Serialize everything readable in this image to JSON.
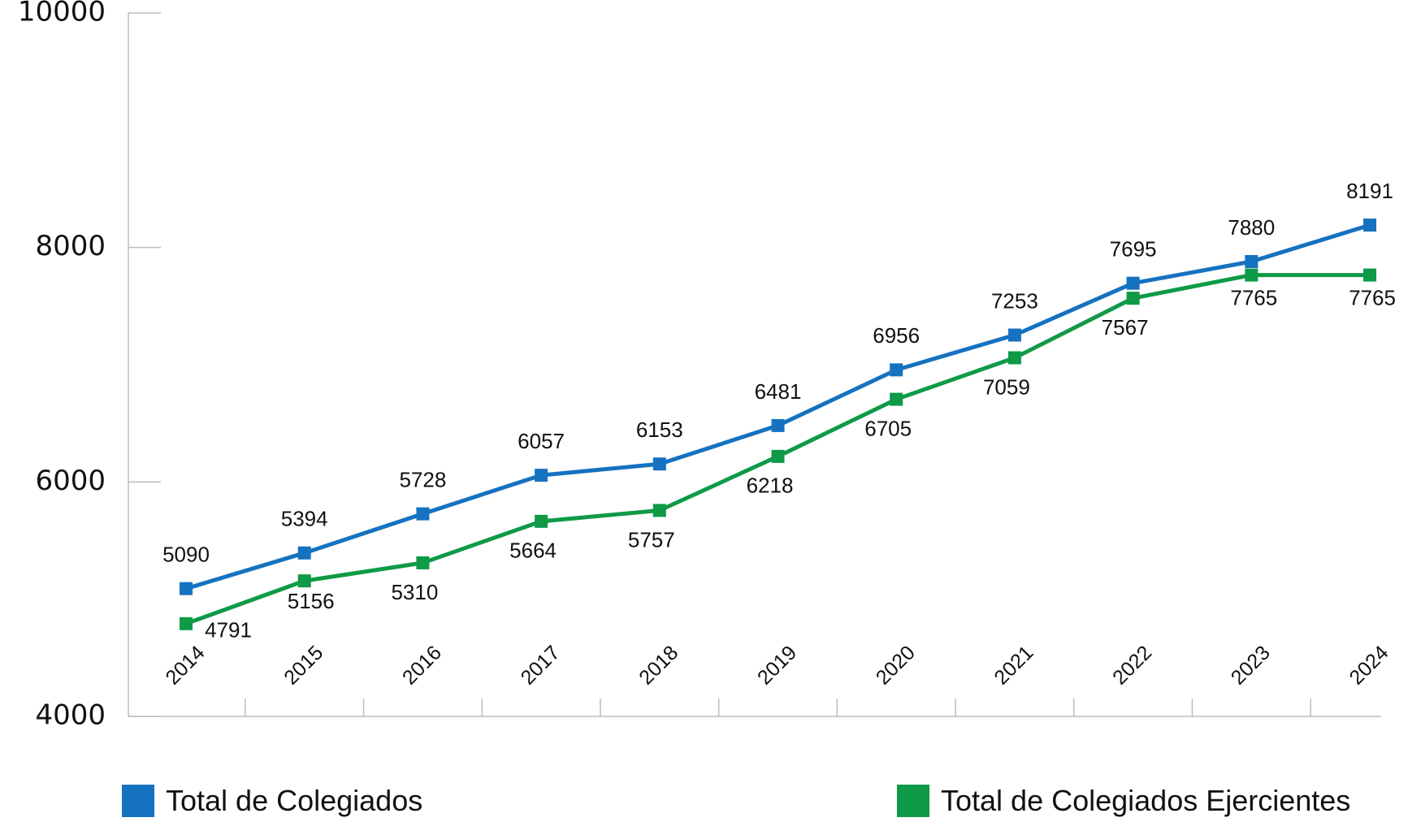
{
  "chart_data": {
    "type": "line",
    "title": "",
    "xlabel": "",
    "ylabel": "",
    "categories": [
      "2014",
      "2015",
      "2016",
      "2017",
      "2018",
      "2019",
      "2020",
      "2021",
      "2022",
      "2023",
      "2024"
    ],
    "ylim": [
      4000,
      10000
    ],
    "yticks": [
      4000,
      6000,
      8000,
      10000
    ],
    "grid": false,
    "legend_position": "bottom",
    "series": [
      {
        "name": "Total de Colegiados",
        "color": "#1572C0",
        "values": [
          5090,
          5394,
          5728,
          6057,
          6153,
          6481,
          6956,
          7253,
          7695,
          7880,
          8191
        ]
      },
      {
        "name": "Total de Colegiados Ejercientes",
        "color": "#0E9A47",
        "values": [
          4791,
          5156,
          5310,
          5664,
          5757,
          6218,
          6705,
          7059,
          7567,
          7765,
          7765
        ]
      }
    ]
  }
}
